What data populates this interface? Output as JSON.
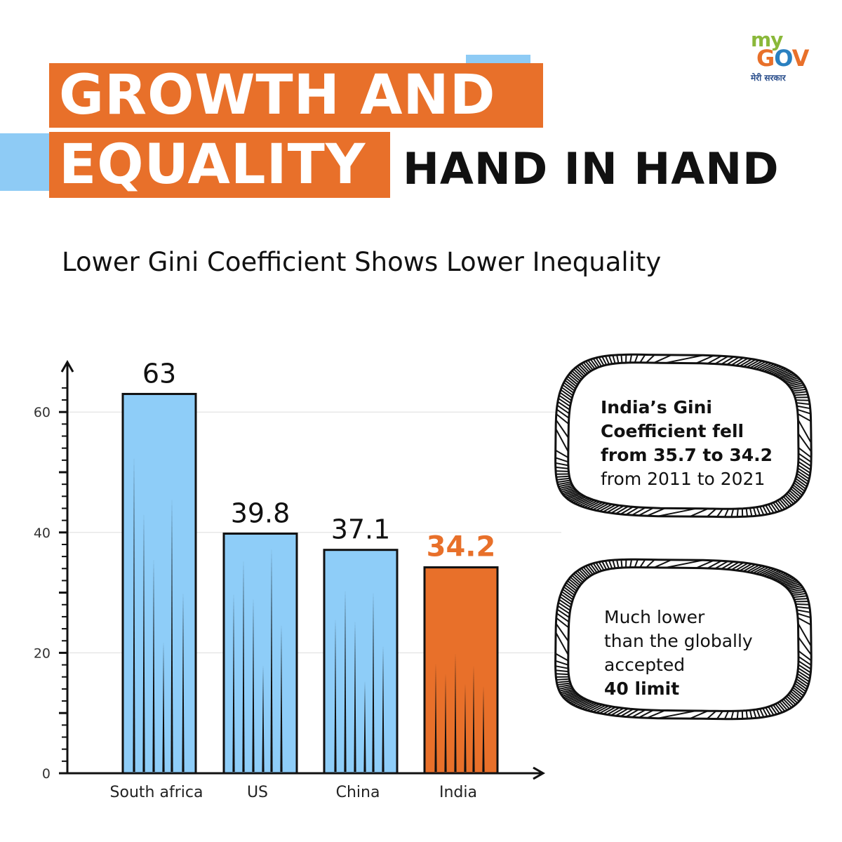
{
  "header": {
    "title_line1": "GROWTH AND",
    "title_line2": "EQUALITY",
    "title_line3": "HAND IN HAND",
    "accent_color": "#e8702a",
    "secondary_color": "#8ecbf5"
  },
  "logo": {
    "my": "my",
    "gov_g": "G",
    "gov_o": "O",
    "gov_v": "V",
    "tagline": "मेरी सरकार"
  },
  "subtitle": "Lower Gini Coefficient Shows Lower Inequality",
  "chart_data": {
    "type": "bar",
    "categories": [
      "South africa",
      "US",
      "China",
      "India"
    ],
    "values": [
      63,
      39.8,
      37.1,
      34.2
    ],
    "value_labels": [
      "63",
      "39.8",
      "37.1",
      "34.2"
    ],
    "highlight_index": 3,
    "bar_color": "#8ecdf8",
    "highlight_color": "#e8702a",
    "ylim": [
      0,
      70
    ],
    "yticks": [
      0,
      20,
      40,
      60
    ],
    "grid": true,
    "title": "",
    "xlabel": "",
    "ylabel": ""
  },
  "callouts": [
    {
      "bold_lines": [
        "India’s Gini",
        "Coefficient fell",
        "from 35.7 to 34.2"
      ],
      "normal_lines": [
        "from 2011 to 2021"
      ]
    },
    {
      "normal_lines": [
        "Much lower",
        "than the globally",
        "accepted"
      ],
      "bold_lines": [
        "40 limit"
      ]
    }
  ]
}
